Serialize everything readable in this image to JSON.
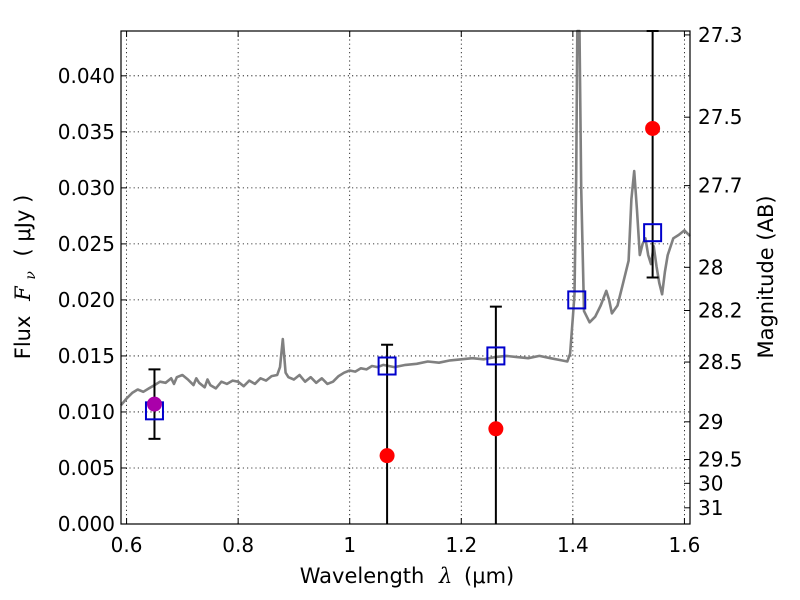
{
  "chart_data": {
    "type": "scatter",
    "xlabel": {
      "text": "Wavelength",
      "symbol": "λ",
      "unit": "(μm)"
    },
    "ylabel": {
      "text": "Flux",
      "symbol": "F",
      "subscript": "ν",
      "unit": "( μJy )"
    },
    "y2label": "Magnitude (AB)",
    "xlim": [
      0.59,
      1.61
    ],
    "ylim": [
      0.0,
      0.044
    ],
    "x_ticks": [
      {
        "value": 0.6,
        "label": "0.6"
      },
      {
        "value": 0.8,
        "label": "0.8"
      },
      {
        "value": 1.0,
        "label": "1"
      },
      {
        "value": 1.2,
        "label": "1.2"
      },
      {
        "value": 1.4,
        "label": "1.4"
      },
      {
        "value": 1.6,
        "label": "1.6"
      }
    ],
    "y_ticks": [
      {
        "value": 0.0,
        "label": "0.000"
      },
      {
        "value": 0.005,
        "label": "0.005"
      },
      {
        "value": 0.01,
        "label": "0.010"
      },
      {
        "value": 0.015,
        "label": "0.015"
      },
      {
        "value": 0.02,
        "label": "0.020"
      },
      {
        "value": 0.025,
        "label": "0.025"
      },
      {
        "value": 0.03,
        "label": "0.030"
      },
      {
        "value": 0.035,
        "label": "0.035"
      },
      {
        "value": 0.04,
        "label": "0.040"
      }
    ],
    "magnitude_ticks": [
      {
        "label": "27.3",
        "value": 27.3
      },
      {
        "label": "27.5",
        "value": 27.5
      },
      {
        "label": "27.7",
        "value": 27.7
      },
      {
        "label": "28",
        "value": 28.0
      },
      {
        "label": "28.2",
        "value": 28.2
      },
      {
        "label": "28.5",
        "value": 28.5
      },
      {
        "label": "29",
        "value": 29.0
      },
      {
        "label": "29.5",
        "value": 29.5
      },
      {
        "label": "30",
        "value": 30.0
      },
      {
        "label": "31",
        "value": 31.0
      }
    ],
    "grid": true,
    "model_spectrum": {
      "color": "#808080",
      "points": [
        [
          0.59,
          0.0106
        ],
        [
          0.6,
          0.0112
        ],
        [
          0.61,
          0.0117
        ],
        [
          0.62,
          0.012
        ],
        [
          0.63,
          0.0118
        ],
        [
          0.64,
          0.0121
        ],
        [
          0.65,
          0.0124
        ],
        [
          0.66,
          0.0127
        ],
        [
          0.67,
          0.0126
        ],
        [
          0.68,
          0.013
        ],
        [
          0.685,
          0.0125
        ],
        [
          0.69,
          0.0131
        ],
        [
          0.7,
          0.0133
        ],
        [
          0.71,
          0.0129
        ],
        [
          0.72,
          0.0124
        ],
        [
          0.725,
          0.013
        ],
        [
          0.73,
          0.0126
        ],
        [
          0.74,
          0.0122
        ],
        [
          0.745,
          0.0129
        ],
        [
          0.75,
          0.0124
        ],
        [
          0.76,
          0.0121
        ],
        [
          0.77,
          0.0127
        ],
        [
          0.78,
          0.0125
        ],
        [
          0.79,
          0.0128
        ],
        [
          0.8,
          0.0127
        ],
        [
          0.81,
          0.0123
        ],
        [
          0.82,
          0.0128
        ],
        [
          0.83,
          0.0125
        ],
        [
          0.84,
          0.013
        ],
        [
          0.85,
          0.0128
        ],
        [
          0.86,
          0.0132
        ],
        [
          0.87,
          0.0133
        ],
        [
          0.875,
          0.014
        ],
        [
          0.88,
          0.0165
        ],
        [
          0.885,
          0.0135
        ],
        [
          0.89,
          0.0131
        ],
        [
          0.9,
          0.0129
        ],
        [
          0.91,
          0.0133
        ],
        [
          0.92,
          0.0127
        ],
        [
          0.93,
          0.0131
        ],
        [
          0.94,
          0.0126
        ],
        [
          0.95,
          0.013
        ],
        [
          0.96,
          0.0125
        ],
        [
          0.97,
          0.0127
        ],
        [
          0.98,
          0.0132
        ],
        [
          0.99,
          0.0135
        ],
        [
          1.0,
          0.0137
        ],
        [
          1.01,
          0.0136
        ],
        [
          1.02,
          0.0139
        ],
        [
          1.03,
          0.0138
        ],
        [
          1.04,
          0.0141
        ],
        [
          1.05,
          0.014
        ],
        [
          1.06,
          0.0142
        ],
        [
          1.07,
          0.0141
        ],
        [
          1.08,
          0.014
        ],
        [
          1.1,
          0.0142
        ],
        [
          1.12,
          0.0143
        ],
        [
          1.14,
          0.0145
        ],
        [
          1.16,
          0.0144
        ],
        [
          1.18,
          0.0146
        ],
        [
          1.2,
          0.0147
        ],
        [
          1.22,
          0.0148
        ],
        [
          1.24,
          0.0147
        ],
        [
          1.26,
          0.0149
        ],
        [
          1.28,
          0.015
        ],
        [
          1.3,
          0.0149
        ],
        [
          1.32,
          0.0148
        ],
        [
          1.34,
          0.015
        ],
        [
          1.36,
          0.0148
        ],
        [
          1.38,
          0.0146
        ],
        [
          1.39,
          0.0145
        ],
        [
          1.395,
          0.0152
        ],
        [
          1.4,
          0.0185
        ],
        [
          1.403,
          0.0205
        ],
        [
          1.406,
          0.031
        ],
        [
          1.408,
          0.0442
        ],
        [
          1.412,
          0.0442
        ],
        [
          1.415,
          0.03
        ],
        [
          1.42,
          0.019
        ],
        [
          1.43,
          0.018
        ],
        [
          1.44,
          0.0185
        ],
        [
          1.45,
          0.0195
        ],
        [
          1.46,
          0.0208
        ],
        [
          1.465,
          0.02
        ],
        [
          1.47,
          0.0188
        ],
        [
          1.48,
          0.0195
        ],
        [
          1.49,
          0.0215
        ],
        [
          1.5,
          0.0235
        ],
        [
          1.505,
          0.029
        ],
        [
          1.51,
          0.0315
        ],
        [
          1.515,
          0.028
        ],
        [
          1.52,
          0.024
        ],
        [
          1.525,
          0.025
        ],
        [
          1.53,
          0.0255
        ],
        [
          1.535,
          0.024
        ],
        [
          1.54,
          0.0232
        ],
        [
          1.545,
          0.0248
        ],
        [
          1.55,
          0.023
        ],
        [
          1.555,
          0.0215
        ],
        [
          1.56,
          0.0205
        ],
        [
          1.565,
          0.0225
        ],
        [
          1.57,
          0.024
        ],
        [
          1.58,
          0.0255
        ],
        [
          1.59,
          0.0258
        ],
        [
          1.6,
          0.0262
        ],
        [
          1.61,
          0.0257
        ]
      ]
    },
    "series": [
      {
        "marker": "filled-circle",
        "color": "#ff0000",
        "points": [
          {
            "x": 1.067,
            "y": 0.0061,
            "yerr_low": 0.0061,
            "yerr_high": 0.0099
          },
          {
            "x": 1.262,
            "y": 0.0085,
            "yerr_low": 0.0085,
            "yerr_high": 0.0109
          },
          {
            "x": 1.543,
            "y": 0.0353,
            "yerr_low": 0.0133,
            "yerr_high": 0.0087
          }
        ]
      },
      {
        "marker": "open-square",
        "color": "#0000cc",
        "points": [
          {
            "x": 0.65,
            "y": 0.0101
          },
          {
            "x": 1.067,
            "y": 0.0141
          },
          {
            "x": 1.262,
            "y": 0.015
          },
          {
            "x": 1.407,
            "y": 0.02
          },
          {
            "x": 1.543,
            "y": 0.026
          }
        ]
      },
      {
        "marker": "filled-circle",
        "color": "#aa00aa",
        "points": [
          {
            "x": 0.65,
            "y": 0.0107,
            "yerr_low": 0.0031,
            "yerr_high": 0.0031
          }
        ]
      }
    ]
  }
}
